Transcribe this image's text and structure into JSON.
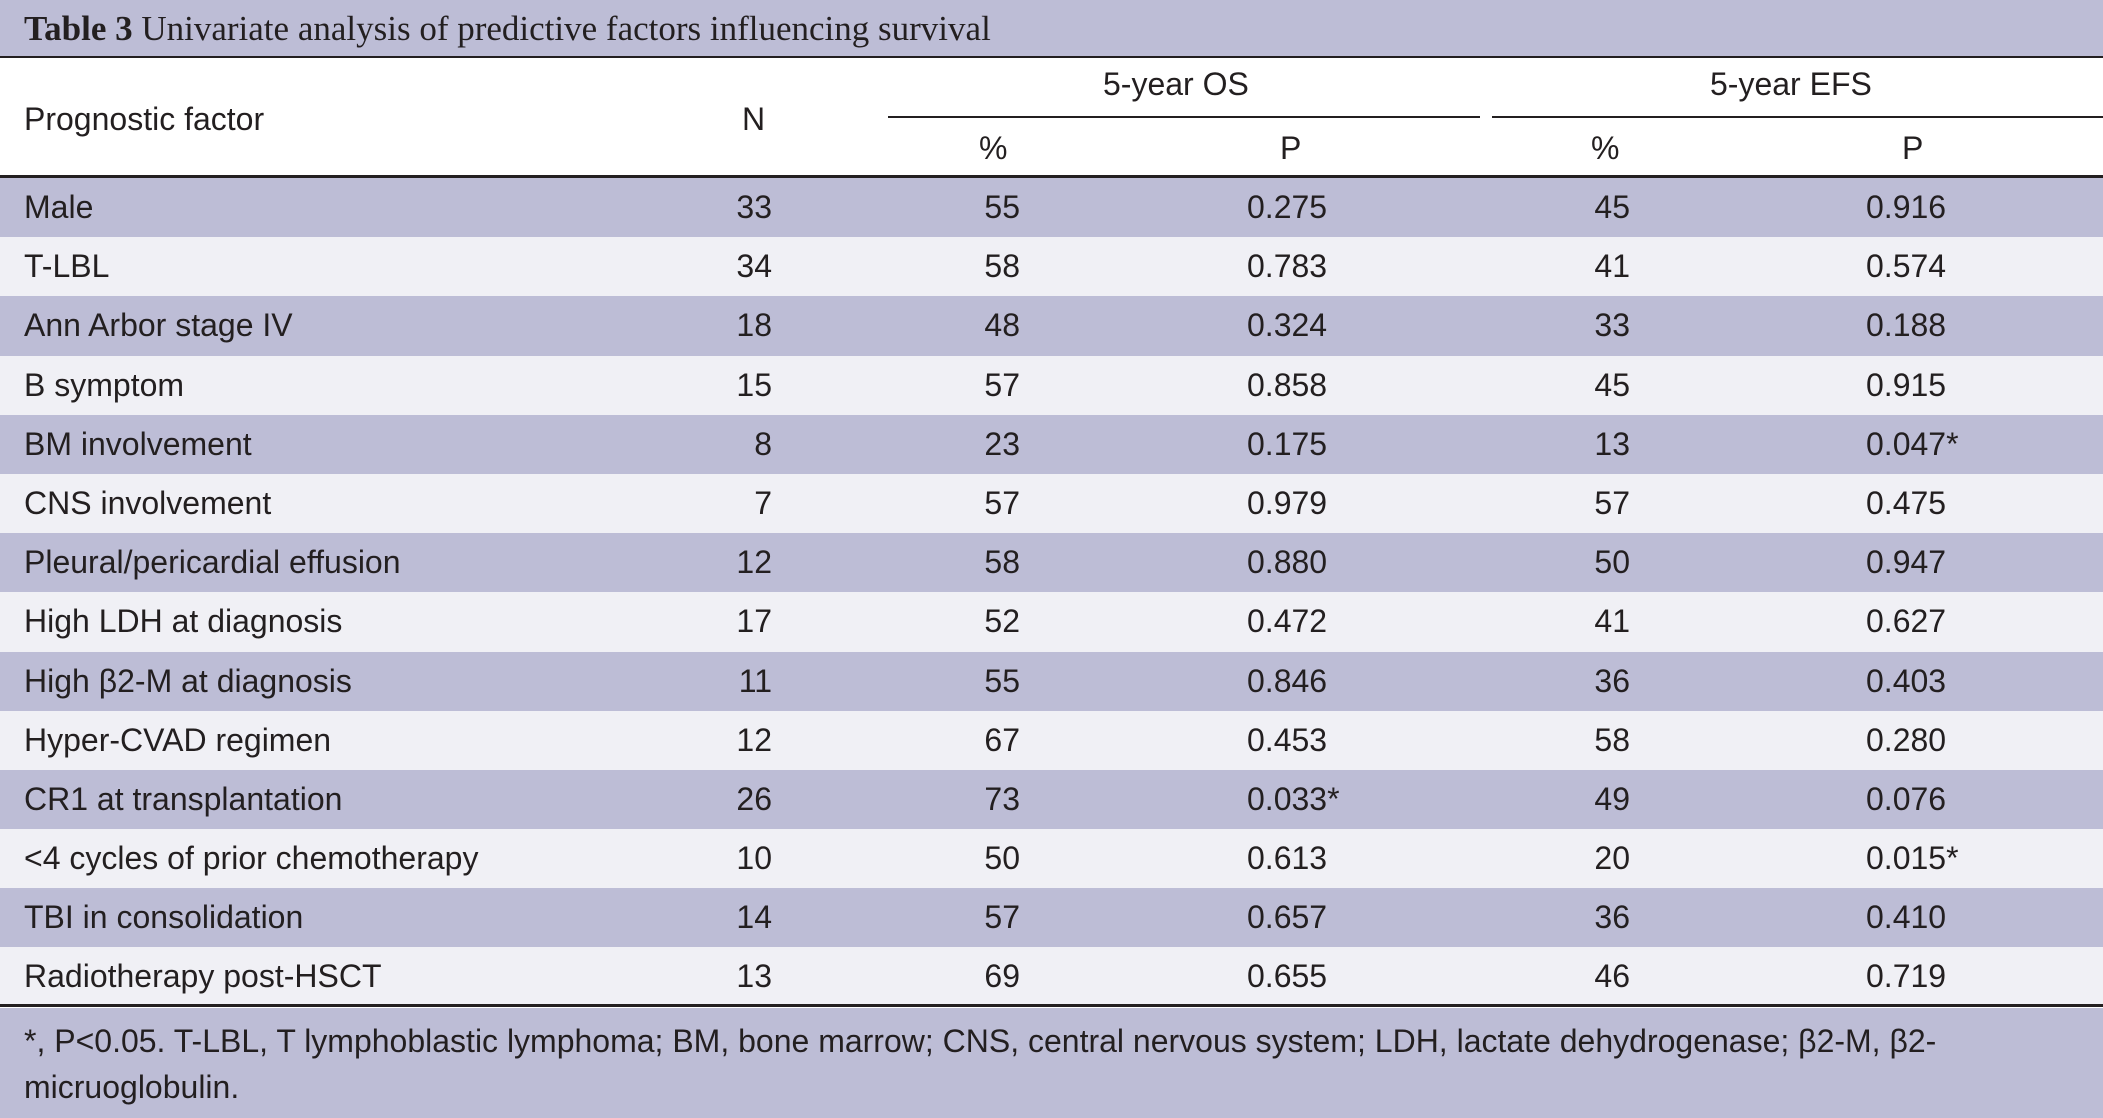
{
  "title": {
    "label": "Table 3",
    "text": "Univariate analysis of predictive factors influencing survival"
  },
  "header": {
    "factor": "Prognostic factor",
    "n": "N",
    "os_group": "5-year OS",
    "efs_group": "5-year EFS",
    "os_pct": "%",
    "os_p": "P",
    "efs_pct": "%",
    "efs_p": "P"
  },
  "rows": [
    {
      "factor": "Male",
      "n": "33",
      "os_pct": "55",
      "os_p": "0.275",
      "efs_pct": "45",
      "efs_p": "0.916"
    },
    {
      "factor": "T-LBL",
      "n": "34",
      "os_pct": "58",
      "os_p": "0.783",
      "efs_pct": "41",
      "efs_p": "0.574"
    },
    {
      "factor": "Ann Arbor stage IV",
      "n": "18",
      "os_pct": "48",
      "os_p": "0.324",
      "efs_pct": "33",
      "efs_p": "0.188"
    },
    {
      "factor": "B symptom",
      "n": "15",
      "os_pct": "57",
      "os_p": "0.858",
      "efs_pct": "45",
      "efs_p": "0.915"
    },
    {
      "factor": "BM involvement",
      "n": "8",
      "os_pct": "23",
      "os_p": "0.175",
      "efs_pct": "13",
      "efs_p": "0.047*"
    },
    {
      "factor": "CNS involvement",
      "n": "7",
      "os_pct": "57",
      "os_p": "0.979",
      "efs_pct": "57",
      "efs_p": "0.475"
    },
    {
      "factor": "Pleural/pericardial effusion",
      "n": "12",
      "os_pct": "58",
      "os_p": "0.880",
      "efs_pct": "50",
      "efs_p": "0.947"
    },
    {
      "factor": "High LDH at diagnosis",
      "n": "17",
      "os_pct": "52",
      "os_p": "0.472",
      "efs_pct": "41",
      "efs_p": "0.627"
    },
    {
      "factor": "High β2-M at diagnosis",
      "n": "11",
      "os_pct": "55",
      "os_p": "0.846",
      "efs_pct": "36",
      "efs_p": "0.403"
    },
    {
      "factor": "Hyper-CVAD regimen",
      "n": "12",
      "os_pct": "67",
      "os_p": "0.453",
      "efs_pct": "58",
      "efs_p": "0.280"
    },
    {
      "factor": "CR1 at transplantation",
      "n": "26",
      "os_pct": "73",
      "os_p": "0.033*",
      "efs_pct": "49",
      "efs_p": "0.076"
    },
    {
      "factor": "<4 cycles of prior chemotherapy",
      "n": "10",
      "os_pct": "50",
      "os_p": "0.613",
      "efs_pct": "20",
      "efs_p": "0.015*"
    },
    {
      "factor": "TBI in consolidation",
      "n": "14",
      "os_pct": "57",
      "os_p": "0.657",
      "efs_pct": "36",
      "efs_p": "0.410"
    },
    {
      "factor": "Radiotherapy post-HSCT",
      "n": "13",
      "os_pct": "69",
      "os_p": "0.655",
      "efs_pct": "46",
      "efs_p": "0.719"
    }
  ],
  "footnote": "*, P<0.05. T-LBL, T lymphoblastic lymphoma; BM, bone marrow; CNS, central nervous system; LDH, lactate dehydrogenase; β2-M, β2-micruoglobulin.",
  "colors": {
    "band": "#bdbdd6",
    "band_light": "#f0f0f5",
    "text": "#231f20"
  }
}
